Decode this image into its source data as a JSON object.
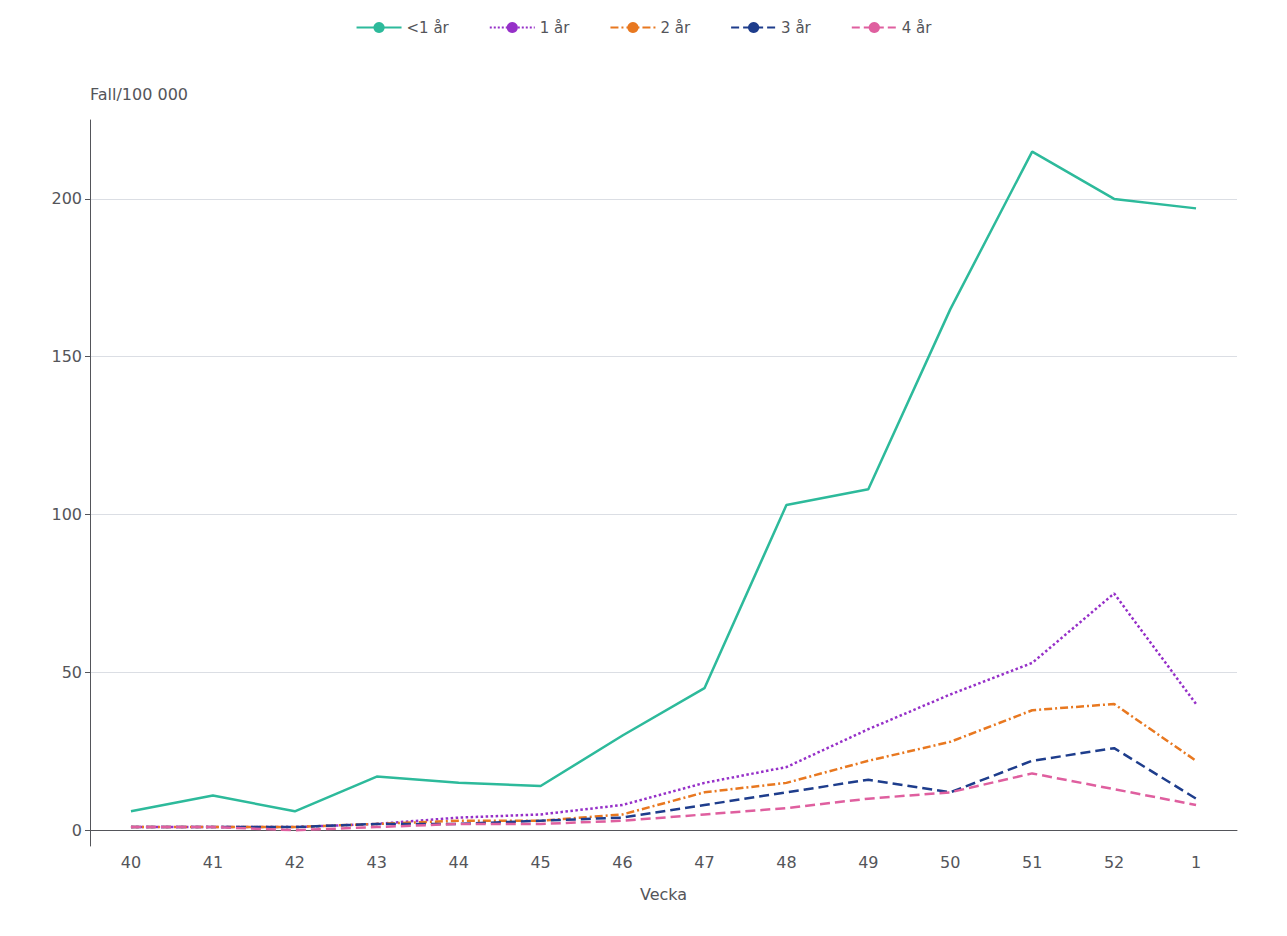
{
  "chart_data": {
    "type": "line",
    "xlabel": "Vecka",
    "ylabel": "Fall/100 000",
    "categories": [
      40,
      41,
      42,
      43,
      44,
      45,
      46,
      47,
      48,
      49,
      50,
      51,
      52,
      1
    ],
    "series": [
      {
        "name": "<1 år",
        "color": "#2dba9b",
        "line_style": "solid",
        "values": [
          6,
          11,
          6,
          17,
          15,
          14,
          30,
          45,
          103,
          108,
          165,
          215,
          200,
          197
        ]
      },
      {
        "name": "1 år",
        "color": "#9630c8",
        "line_style": "dotted",
        "values": [
          1,
          1,
          1,
          2,
          4,
          5,
          8,
          15,
          20,
          32,
          43,
          53,
          75,
          40
        ]
      },
      {
        "name": "2 år",
        "color": "#e87820",
        "line_style": "dashdot",
        "values": [
          1,
          1,
          1,
          2,
          3,
          3,
          5,
          12,
          15,
          22,
          28,
          38,
          40,
          22
        ]
      },
      {
        "name": "3 år",
        "color": "#1e3d8c",
        "line_style": "dashed",
        "values": [
          1,
          1,
          1,
          2,
          2,
          3,
          4,
          8,
          12,
          16,
          12,
          22,
          26,
          10
        ]
      },
      {
        "name": "4 år",
        "color": "#df5f9f",
        "line_style": "dashed",
        "values": [
          1,
          1,
          0,
          1,
          2,
          2,
          3,
          5,
          7,
          10,
          12,
          18,
          13,
          8
        ]
      }
    ],
    "ylim": [
      -5,
      225
    ],
    "yticks": [
      0,
      50,
      100,
      150,
      200
    ],
    "grid": true,
    "legend": "top"
  }
}
